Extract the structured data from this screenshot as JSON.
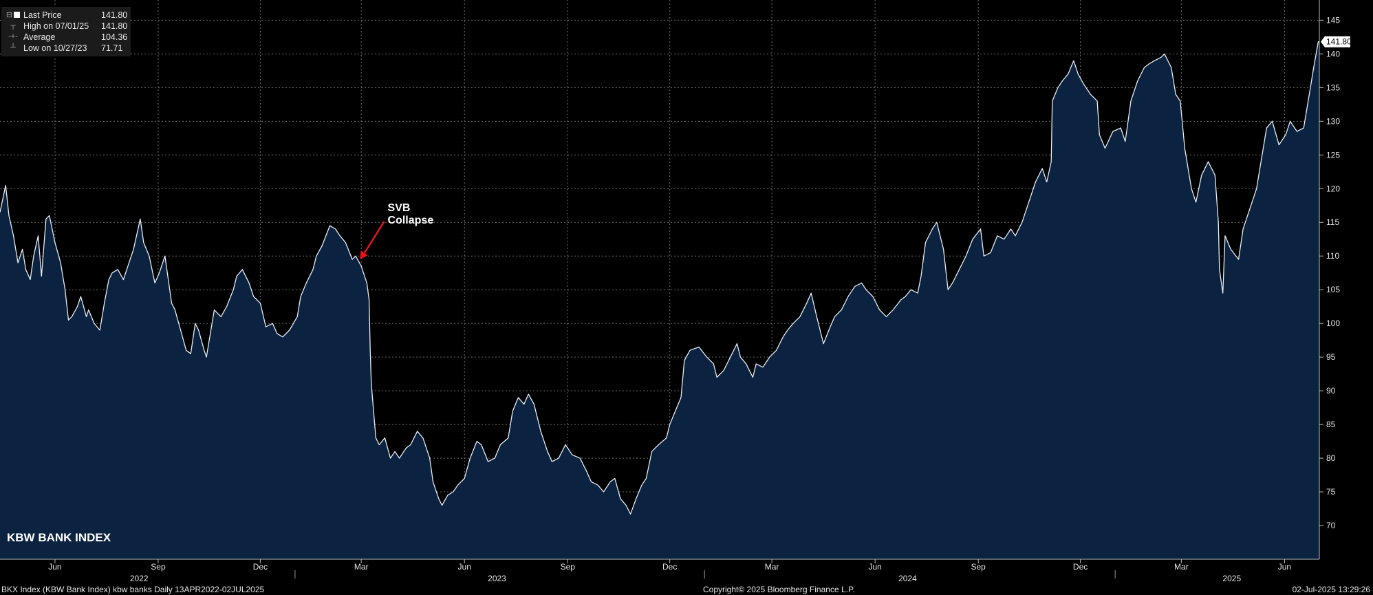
{
  "legend": {
    "rows": [
      {
        "label": "Last Price",
        "value": "141.80",
        "marker": "square-marker"
      },
      {
        "label": "High on 07/01/25",
        "value": "141.80",
        "marker": "high-marker"
      },
      {
        "label": "Average",
        "value": "104.36",
        "marker": "average-marker"
      },
      {
        "label": "Low on 10/27/23",
        "value": "71.71",
        "marker": "low-marker"
      }
    ]
  },
  "colors": {
    "background": "#000000",
    "area_fill": "#0b2340",
    "line": "#e8eef6",
    "grid": "#6f6f6f",
    "annotation_arrow": "#e8141c",
    "text": "#e6e6e6"
  },
  "footer": {
    "left": "BKX Index (KBW Bank Index) kbw banks  Daily 13APR2022-02JUL2025",
    "center": "Copyright© 2025 Bloomberg Finance L.P.",
    "right": "02-Jul-2025 13:29:26"
  },
  "chart_data": {
    "type": "area",
    "title": "KBW BANK INDEX",
    "x_start": "2022-04-13",
    "x_end": "2025-07-02",
    "ylim": [
      65,
      148
    ],
    "yticks": [
      70,
      75,
      80,
      85,
      90,
      95,
      100,
      105,
      110,
      115,
      120,
      125,
      130,
      135,
      140,
      145
    ],
    "grid": true,
    "y_axis_side": "right",
    "month_ticks": [
      {
        "label": "Jun",
        "date": "2022-06-01"
      },
      {
        "label": "Sep",
        "date": "2022-09-01"
      },
      {
        "label": "Dec",
        "date": "2022-12-01"
      },
      {
        "label": "Mar",
        "date": "2023-03-01"
      },
      {
        "label": "Jun",
        "date": "2023-06-01"
      },
      {
        "label": "Sep",
        "date": "2023-09-01"
      },
      {
        "label": "Dec",
        "date": "2023-12-01"
      },
      {
        "label": "Mar",
        "date": "2024-03-01"
      },
      {
        "label": "Jun",
        "date": "2024-06-01"
      },
      {
        "label": "Sep",
        "date": "2024-09-01"
      },
      {
        "label": "Dec",
        "date": "2024-12-01"
      },
      {
        "label": "Mar",
        "date": "2025-03-01"
      },
      {
        "label": "Jun",
        "date": "2025-06-01"
      }
    ],
    "year_labels": [
      {
        "label": "2022",
        "date": "2022-08-15"
      },
      {
        "label": "2023",
        "date": "2023-06-30"
      },
      {
        "label": "2024",
        "date": "2024-06-30"
      },
      {
        "label": "2025",
        "date": "2025-04-15"
      }
    ],
    "year_separators": [
      "2023-01-01",
      "2024-01-01",
      "2025-01-01"
    ],
    "last_value_label": "141.80",
    "annotation": {
      "text": [
        "SVB",
        "Collapse"
      ],
      "date": "2023-02-28",
      "value": 109.5
    },
    "series": [
      {
        "name": "Last Price",
        "points": [
          [
            "2022-04-13",
            116.5
          ],
          [
            "2022-04-18",
            120.5
          ],
          [
            "2022-04-21",
            116
          ],
          [
            "2022-04-25",
            113
          ],
          [
            "2022-04-29",
            109
          ],
          [
            "2022-05-03",
            111
          ],
          [
            "2022-05-06",
            108
          ],
          [
            "2022-05-10",
            106.5
          ],
          [
            "2022-05-13",
            110
          ],
          [
            "2022-05-17",
            113
          ],
          [
            "2022-05-20",
            107
          ],
          [
            "2022-05-24",
            115.5
          ],
          [
            "2022-05-27",
            116
          ],
          [
            "2022-06-01",
            112
          ],
          [
            "2022-06-06",
            109
          ],
          [
            "2022-06-10",
            105
          ],
          [
            "2022-06-13",
            100.5
          ],
          [
            "2022-06-16",
            101
          ],
          [
            "2022-06-21",
            102.5
          ],
          [
            "2022-06-24",
            104
          ],
          [
            "2022-06-29",
            101
          ],
          [
            "2022-07-01",
            102
          ],
          [
            "2022-07-06",
            100
          ],
          [
            "2022-07-11",
            99
          ],
          [
            "2022-07-15",
            103
          ],
          [
            "2022-07-19",
            106.5
          ],
          [
            "2022-07-22",
            107.5
          ],
          [
            "2022-07-27",
            108
          ],
          [
            "2022-08-01",
            106.5
          ],
          [
            "2022-08-05",
            108.5
          ],
          [
            "2022-08-10",
            111
          ],
          [
            "2022-08-16",
            115.5
          ],
          [
            "2022-08-19",
            112
          ],
          [
            "2022-08-24",
            110
          ],
          [
            "2022-08-29",
            106
          ],
          [
            "2022-09-02",
            107.5
          ],
          [
            "2022-09-07",
            110
          ],
          [
            "2022-09-13",
            103
          ],
          [
            "2022-09-16",
            102
          ],
          [
            "2022-09-21",
            99
          ],
          [
            "2022-09-26",
            96
          ],
          [
            "2022-09-30",
            95.5
          ],
          [
            "2022-10-04",
            100
          ],
          [
            "2022-10-07",
            99
          ],
          [
            "2022-10-12",
            96
          ],
          [
            "2022-10-14",
            95
          ],
          [
            "2022-10-18",
            99
          ],
          [
            "2022-10-21",
            102
          ],
          [
            "2022-10-27",
            101
          ],
          [
            "2022-11-01",
            102.5
          ],
          [
            "2022-11-07",
            105
          ],
          [
            "2022-11-10",
            107
          ],
          [
            "2022-11-15",
            108
          ],
          [
            "2022-11-21",
            106
          ],
          [
            "2022-11-25",
            104
          ],
          [
            "2022-12-01",
            103
          ],
          [
            "2022-12-06",
            99.5
          ],
          [
            "2022-12-12",
            100
          ],
          [
            "2022-12-16",
            98.5
          ],
          [
            "2022-12-21",
            98
          ],
          [
            "2022-12-27",
            99
          ],
          [
            "2023-01-03",
            101
          ],
          [
            "2023-01-06",
            104
          ],
          [
            "2023-01-11",
            106
          ],
          [
            "2023-01-17",
            108
          ],
          [
            "2023-01-20",
            110
          ],
          [
            "2023-01-25",
            111.5
          ],
          [
            "2023-02-01",
            114.5
          ],
          [
            "2023-02-06",
            114
          ],
          [
            "2023-02-10",
            113
          ],
          [
            "2023-02-15",
            112
          ],
          [
            "2023-02-21",
            109.5
          ],
          [
            "2023-02-24",
            110
          ],
          [
            "2023-03-01",
            108.5
          ],
          [
            "2023-03-06",
            106
          ],
          [
            "2023-03-08",
            103.5
          ],
          [
            "2023-03-09",
            96
          ],
          [
            "2023-03-10",
            91
          ],
          [
            "2023-03-13",
            85
          ],
          [
            "2023-03-14",
            83
          ],
          [
            "2023-03-17",
            82
          ],
          [
            "2023-03-22",
            83
          ],
          [
            "2023-03-27",
            80
          ],
          [
            "2023-03-31",
            81
          ],
          [
            "2023-04-04",
            80
          ],
          [
            "2023-04-10",
            81.5
          ],
          [
            "2023-04-14",
            82
          ],
          [
            "2023-04-20",
            84
          ],
          [
            "2023-04-25",
            83
          ],
          [
            "2023-05-01",
            80
          ],
          [
            "2023-05-04",
            76.5
          ],
          [
            "2023-05-09",
            74
          ],
          [
            "2023-05-12",
            73
          ],
          [
            "2023-05-17",
            74.5
          ],
          [
            "2023-05-22",
            75
          ],
          [
            "2023-05-26",
            76
          ],
          [
            "2023-06-01",
            77
          ],
          [
            "2023-06-06",
            80
          ],
          [
            "2023-06-12",
            82.5
          ],
          [
            "2023-06-16",
            82
          ],
          [
            "2023-06-22",
            79.5
          ],
          [
            "2023-06-28",
            80
          ],
          [
            "2023-07-03",
            82
          ],
          [
            "2023-07-10",
            83
          ],
          [
            "2023-07-14",
            87
          ],
          [
            "2023-07-19",
            89
          ],
          [
            "2023-07-24",
            88
          ],
          [
            "2023-07-28",
            89.5
          ],
          [
            "2023-08-02",
            88
          ],
          [
            "2023-08-08",
            84
          ],
          [
            "2023-08-14",
            81
          ],
          [
            "2023-08-18",
            79.5
          ],
          [
            "2023-08-24",
            80
          ],
          [
            "2023-08-30",
            82
          ],
          [
            "2023-09-05",
            80.5
          ],
          [
            "2023-09-12",
            80
          ],
          [
            "2023-09-18",
            78
          ],
          [
            "2023-09-22",
            76.5
          ],
          [
            "2023-09-28",
            76
          ],
          [
            "2023-10-03",
            75
          ],
          [
            "2023-10-09",
            76.5
          ],
          [
            "2023-10-13",
            77
          ],
          [
            "2023-10-18",
            74
          ],
          [
            "2023-10-23",
            73
          ],
          [
            "2023-10-27",
            71.71
          ],
          [
            "2023-11-01",
            74
          ],
          [
            "2023-11-06",
            76
          ],
          [
            "2023-11-10",
            77
          ],
          [
            "2023-11-15",
            81
          ],
          [
            "2023-11-21",
            82
          ],
          [
            "2023-11-28",
            83
          ],
          [
            "2023-12-01",
            85
          ],
          [
            "2023-12-06",
            87
          ],
          [
            "2023-12-11",
            89
          ],
          [
            "2023-12-14",
            94.5
          ],
          [
            "2023-12-19",
            96
          ],
          [
            "2023-12-27",
            96.5
          ],
          [
            "2024-01-03",
            95
          ],
          [
            "2024-01-09",
            94
          ],
          [
            "2024-01-12",
            92
          ],
          [
            "2024-01-18",
            93
          ],
          [
            "2024-01-24",
            95
          ],
          [
            "2024-01-30",
            97
          ],
          [
            "2024-02-02",
            95
          ],
          [
            "2024-02-07",
            94
          ],
          [
            "2024-02-13",
            92
          ],
          [
            "2024-02-16",
            94
          ],
          [
            "2024-02-22",
            93.5
          ],
          [
            "2024-02-28",
            95
          ],
          [
            "2024-03-05",
            96
          ],
          [
            "2024-03-11",
            98
          ],
          [
            "2024-03-15",
            99
          ],
          [
            "2024-03-20",
            100
          ],
          [
            "2024-03-26",
            101
          ],
          [
            "2024-04-01",
            103
          ],
          [
            "2024-04-05",
            104.5
          ],
          [
            "2024-04-10",
            101
          ],
          [
            "2024-04-16",
            97
          ],
          [
            "2024-04-22",
            99.5
          ],
          [
            "2024-04-26",
            101
          ],
          [
            "2024-05-02",
            102
          ],
          [
            "2024-05-08",
            104
          ],
          [
            "2024-05-14",
            105.5
          ],
          [
            "2024-05-20",
            106
          ],
          [
            "2024-05-24",
            105
          ],
          [
            "2024-05-30",
            104
          ],
          [
            "2024-06-05",
            102
          ],
          [
            "2024-06-11",
            101
          ],
          [
            "2024-06-17",
            102
          ],
          [
            "2024-06-24",
            103.5
          ],
          [
            "2024-06-28",
            104
          ],
          [
            "2024-07-03",
            105
          ],
          [
            "2024-07-09",
            104.5
          ],
          [
            "2024-07-12",
            107
          ],
          [
            "2024-07-16",
            112
          ],
          [
            "2024-07-22",
            114
          ],
          [
            "2024-07-26",
            115
          ],
          [
            "2024-08-01",
            111
          ],
          [
            "2024-08-05",
            105
          ],
          [
            "2024-08-09",
            106
          ],
          [
            "2024-08-15",
            108
          ],
          [
            "2024-08-21",
            110
          ],
          [
            "2024-08-27",
            112.5
          ],
          [
            "2024-09-03",
            114
          ],
          [
            "2024-09-06",
            110
          ],
          [
            "2024-09-12",
            110.5
          ],
          [
            "2024-09-18",
            113
          ],
          [
            "2024-09-24",
            112.5
          ],
          [
            "2024-09-30",
            114
          ],
          [
            "2024-10-04",
            113
          ],
          [
            "2024-10-10",
            115
          ],
          [
            "2024-10-16",
            118
          ],
          [
            "2024-10-22",
            121
          ],
          [
            "2024-10-28",
            123
          ],
          [
            "2024-11-01",
            121
          ],
          [
            "2024-11-05",
            124
          ],
          [
            "2024-11-06",
            133
          ],
          [
            "2024-11-11",
            135
          ],
          [
            "2024-11-15",
            136
          ],
          [
            "2024-11-20",
            137
          ],
          [
            "2024-11-25",
            139
          ],
          [
            "2024-11-29",
            137
          ],
          [
            "2024-12-04",
            135.5
          ],
          [
            "2024-12-10",
            134
          ],
          [
            "2024-12-16",
            133
          ],
          [
            "2024-12-18",
            128
          ],
          [
            "2024-12-23",
            126
          ],
          [
            "2024-12-30",
            128.5
          ],
          [
            "2025-01-06",
            129
          ],
          [
            "2025-01-10",
            127
          ],
          [
            "2025-01-15",
            133
          ],
          [
            "2025-01-21",
            136
          ],
          [
            "2025-01-27",
            138
          ],
          [
            "2025-01-31",
            138.5
          ],
          [
            "2025-02-05",
            139
          ],
          [
            "2025-02-11",
            139.5
          ],
          [
            "2025-02-14",
            140
          ],
          [
            "2025-02-20",
            138
          ],
          [
            "2025-02-24",
            134
          ],
          [
            "2025-02-28",
            133
          ],
          [
            "2025-03-04",
            126
          ],
          [
            "2025-03-10",
            120
          ],
          [
            "2025-03-14",
            118
          ],
          [
            "2025-03-19",
            122
          ],
          [
            "2025-03-25",
            124
          ],
          [
            "2025-03-31",
            122
          ],
          [
            "2025-04-03",
            115
          ],
          [
            "2025-04-04",
            108
          ],
          [
            "2025-04-07",
            104.5
          ],
          [
            "2025-04-09",
            113
          ],
          [
            "2025-04-14",
            111
          ],
          [
            "2025-04-21",
            109.5
          ],
          [
            "2025-04-25",
            114
          ],
          [
            "2025-05-01",
            117
          ],
          [
            "2025-05-07",
            120
          ],
          [
            "2025-05-12",
            125
          ],
          [
            "2025-05-16",
            129
          ],
          [
            "2025-05-21",
            130
          ],
          [
            "2025-05-27",
            126.5
          ],
          [
            "2025-06-02",
            128
          ],
          [
            "2025-06-06",
            130
          ],
          [
            "2025-06-12",
            128.5
          ],
          [
            "2025-06-18",
            129
          ],
          [
            "2025-06-24",
            135
          ],
          [
            "2025-06-27",
            138
          ],
          [
            "2025-07-01",
            141.8
          ],
          [
            "2025-07-02",
            141.8
          ]
        ]
      }
    ]
  }
}
